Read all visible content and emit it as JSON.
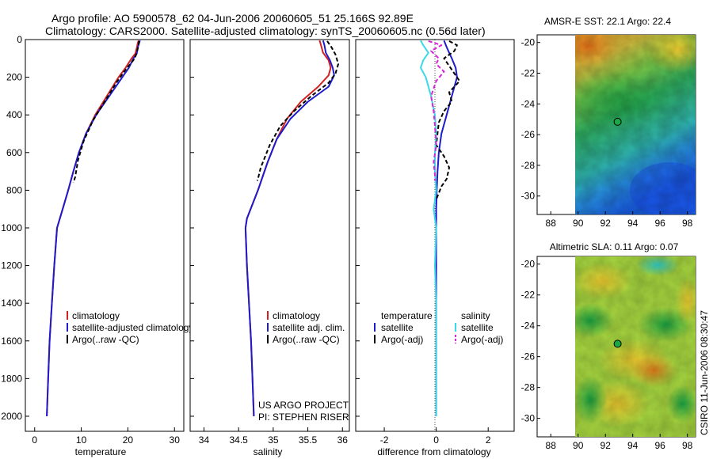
{
  "header": {
    "line1": "Argo profile: AO 5900578_62 04-Jun-2006 20060605_51 25.166S 92.89E",
    "line2": "Climatology: CARS2000. Satellite-adjusted climatology: synTS_20060605.nc (0.56d later)"
  },
  "footer": {
    "project": "US ARGO PROJECT",
    "pi": "PI: STEPHEN RISER",
    "stamp": "CSIRO 11-Jun-2006 08:30:47"
  },
  "colors": {
    "climatology": "#d42020",
    "satellite": "#1c1ccc",
    "argo": "#000000",
    "salinity_satellite": "#3ad9e8",
    "salinity_argo": "#d826d8"
  },
  "chart_data": [
    {
      "type": "line",
      "name": "temperature-profile",
      "xlabel": "temperature",
      "ylabel": "",
      "xlim": [
        -2,
        32
      ],
      "ylim": [
        2080,
        0
      ],
      "xticks": [
        0,
        10,
        20,
        30
      ],
      "yticks": [
        0,
        200,
        400,
        600,
        800,
        1000,
        1200,
        1400,
        1600,
        1800,
        2000
      ],
      "legend": [
        "climatology",
        "satellite-adjusted climatology",
        "Argo(..raw -QC)"
      ],
      "series": [
        {
          "name": "climatology",
          "style": "solid",
          "points": [
            [
              22.3,
              5
            ],
            [
              22.1,
              20
            ],
            [
              21.9,
              45
            ],
            [
              21.6,
              75
            ],
            [
              20.8,
              100
            ],
            [
              19.5,
              150
            ],
            [
              18.0,
              200
            ],
            [
              15.5,
              300
            ],
            [
              13.0,
              400
            ],
            [
              11.0,
              500
            ],
            [
              9.5,
              600
            ],
            [
              8.3,
              700
            ],
            [
              7.2,
              800
            ],
            [
              6.0,
              900
            ],
            [
              4.8,
              1000
            ],
            [
              4.2,
              1200
            ],
            [
              3.7,
              1400
            ],
            [
              3.2,
              1600
            ],
            [
              2.9,
              1800
            ],
            [
              2.6,
              2000
            ]
          ]
        },
        {
          "name": "satellite-adjusted climatology",
          "style": "solid",
          "points": [
            [
              22.6,
              5
            ],
            [
              22.4,
              20
            ],
            [
              22.1,
              45
            ],
            [
              21.9,
              75
            ],
            [
              21.2,
              100
            ],
            [
              20.2,
              150
            ],
            [
              18.8,
              200
            ],
            [
              16.0,
              300
            ],
            [
              13.2,
              400
            ],
            [
              11.0,
              500
            ],
            [
              9.5,
              600
            ],
            [
              8.3,
              700
            ],
            [
              7.2,
              800
            ],
            [
              6.0,
              900
            ],
            [
              4.8,
              1000
            ],
            [
              4.2,
              1200
            ],
            [
              3.7,
              1400
            ],
            [
              3.2,
              1600
            ],
            [
              2.9,
              1800
            ],
            [
              2.6,
              2000
            ]
          ]
        },
        {
          "name": "Argo(..raw -QC)",
          "style": "dashed",
          "points": [
            [
              22.4,
              8
            ],
            [
              22.3,
              30
            ],
            [
              22.0,
              60
            ],
            [
              21.5,
              100
            ],
            [
              19.5,
              160
            ],
            [
              17.5,
              230
            ],
            [
              15.0,
              330
            ],
            [
              12.5,
              430
            ],
            [
              10.5,
              540
            ],
            [
              9.3,
              640
            ],
            [
              8.7,
              730
            ],
            [
              8.3,
              760
            ]
          ]
        }
      ]
    },
    {
      "type": "line",
      "name": "salinity-profile",
      "xlabel": "salinity",
      "ylabel": "",
      "xlim": [
        33.8,
        36.1
      ],
      "ylim": [
        2080,
        0
      ],
      "xticks": [
        34,
        34.5,
        35,
        35.5,
        36
      ],
      "legend": [
        "climatology",
        "satellite adj. clim.",
        "Argo(..raw -QC)"
      ],
      "series": [
        {
          "name": "climatology",
          "style": "solid",
          "points": [
            [
              35.67,
              5
            ],
            [
              35.69,
              30
            ],
            [
              35.72,
              70
            ],
            [
              35.8,
              110
            ],
            [
              35.83,
              150
            ],
            [
              35.8,
              190
            ],
            [
              35.65,
              250
            ],
            [
              35.4,
              330
            ],
            [
              35.2,
              420
            ],
            [
              35.05,
              530
            ],
            [
              34.92,
              650
            ],
            [
              34.78,
              800
            ],
            [
              34.62,
              950
            ],
            [
              34.6,
              1000
            ],
            [
              34.62,
              1200
            ],
            [
              34.65,
              1400
            ],
            [
              34.68,
              1600
            ],
            [
              34.7,
              1800
            ],
            [
              34.72,
              2000
            ]
          ]
        },
        {
          "name": "satellite adj. clim.",
          "style": "solid",
          "points": [
            [
              35.72,
              5
            ],
            [
              35.74,
              30
            ],
            [
              35.76,
              70
            ],
            [
              35.82,
              110
            ],
            [
              35.86,
              150
            ],
            [
              35.88,
              190
            ],
            [
              35.8,
              250
            ],
            [
              35.5,
              330
            ],
            [
              35.25,
              420
            ],
            [
              35.05,
              530
            ],
            [
              34.92,
              650
            ],
            [
              34.78,
              800
            ],
            [
              34.62,
              950
            ],
            [
              34.6,
              1000
            ],
            [
              34.62,
              1200
            ],
            [
              34.65,
              1400
            ],
            [
              34.68,
              1600
            ],
            [
              34.7,
              1800
            ],
            [
              34.72,
              2000
            ]
          ]
        },
        {
          "name": "Argo(..raw -QC)",
          "style": "dashed",
          "points": [
            [
              35.78,
              8
            ],
            [
              35.84,
              40
            ],
            [
              35.9,
              80
            ],
            [
              35.94,
              130
            ],
            [
              35.9,
              180
            ],
            [
              35.8,
              230
            ],
            [
              35.55,
              300
            ],
            [
              35.3,
              380
            ],
            [
              35.1,
              460
            ],
            [
              34.95,
              560
            ],
            [
              34.82,
              680
            ],
            [
              34.78,
              740
            ],
            [
              34.77,
              750
            ]
          ]
        }
      ]
    },
    {
      "type": "line",
      "name": "difference-profile",
      "xlabel": "difference from climatology",
      "ylabel": "",
      "xlim": [
        -3.1,
        3.0
      ],
      "ylim": [
        2080,
        0
      ],
      "xticks": [
        -2,
        0,
        2
      ],
      "legend_left": {
        "header": "temperature",
        "items": [
          "satellite",
          "Argo(-adj)"
        ]
      },
      "legend_right": {
        "header": "salinity",
        "items": [
          "satellite",
          "Argo(-adj)"
        ]
      },
      "series": [
        {
          "name": "temperature satellite",
          "style": "solid",
          "points": [
            [
              0.3,
              5
            ],
            [
              0.4,
              40
            ],
            [
              0.5,
              70
            ],
            [
              0.6,
              100
            ],
            [
              0.75,
              150
            ],
            [
              0.8,
              200
            ],
            [
              0.6,
              300
            ],
            [
              0.4,
              400
            ],
            [
              0.3,
              450
            ],
            [
              0.2,
              500
            ],
            [
              0.1,
              600
            ],
            [
              0.05,
              700
            ],
            [
              0.02,
              800
            ],
            [
              0.0,
              900
            ],
            [
              0.0,
              1000
            ],
            [
              0.0,
              1400
            ],
            [
              0.0,
              2000
            ]
          ]
        },
        {
          "name": "temperature Argo(-adj)",
          "style": "dashed",
          "points": [
            [
              0.5,
              8
            ],
            [
              0.8,
              30
            ],
            [
              0.7,
              60
            ],
            [
              0.3,
              100
            ],
            [
              0.6,
              160
            ],
            [
              0.9,
              220
            ],
            [
              0.5,
              280
            ],
            [
              0.6,
              330
            ],
            [
              0.3,
              380
            ],
            [
              0.1,
              440
            ],
            [
              0.0,
              560
            ],
            [
              0.3,
              620
            ],
            [
              0.5,
              680
            ],
            [
              0.4,
              740
            ],
            [
              0.2,
              780
            ],
            [
              0.0,
              850
            ]
          ]
        },
        {
          "name": "salinity satellite",
          "style": "solid",
          "points": [
            [
              -0.6,
              5
            ],
            [
              -0.5,
              30
            ],
            [
              -0.3,
              70
            ],
            [
              -0.5,
              110
            ],
            [
              -0.6,
              150
            ],
            [
              -0.4,
              200
            ],
            [
              -0.2,
              300
            ],
            [
              -0.05,
              400
            ],
            [
              0.0,
              500
            ],
            [
              -0.05,
              600
            ],
            [
              -0.05,
              700
            ],
            [
              0.0,
              800
            ],
            [
              -0.1,
              900
            ],
            [
              0.0,
              1000
            ],
            [
              -0.05,
              1200
            ],
            [
              0.0,
              1400
            ],
            [
              0.0,
              2000
            ]
          ]
        },
        {
          "name": "salinity Argo(-adj)",
          "style": "dashed",
          "points": [
            [
              -0.3,
              8
            ],
            [
              0.2,
              30
            ],
            [
              -0.2,
              60
            ],
            [
              0.1,
              100
            ],
            [
              0.0,
              130
            ],
            [
              0.3,
              170
            ],
            [
              0.0,
              220
            ],
            [
              -0.2,
              300
            ],
            [
              -0.1,
              380
            ],
            [
              -0.05,
              460
            ],
            [
              0.0,
              560
            ],
            [
              -0.1,
              650
            ],
            [
              -0.05,
              720
            ],
            [
              -0.05,
              750
            ]
          ]
        }
      ]
    },
    {
      "type": "heatmap",
      "name": "sst-map",
      "title": "AMSR-E SST: 22.1 Argo: 22.4",
      "xlim": [
        87,
        98.6
      ],
      "ylim": [
        -31.2,
        -19.5
      ],
      "xticks": [
        88,
        90,
        92,
        94,
        96,
        98
      ],
      "yticks": [
        -20,
        -22,
        -24,
        -26,
        -28,
        -30
      ],
      "data_x_range": [
        90,
        98.6
      ],
      "float_position": [
        92.89,
        -25.166
      ]
    },
    {
      "type": "heatmap",
      "name": "sla-map",
      "title": "Altimetric SLA: 0.11 Argo: 0.07",
      "xlim": [
        87,
        98.6
      ],
      "ylim": [
        -31.2,
        -19.5
      ],
      "xticks": [
        88,
        90,
        92,
        94,
        96,
        98
      ],
      "yticks": [
        -20,
        -22,
        -24,
        -26,
        -28,
        -30
      ],
      "data_x_range": [
        90,
        98.6
      ],
      "float_position": [
        92.89,
        -25.166
      ]
    }
  ]
}
